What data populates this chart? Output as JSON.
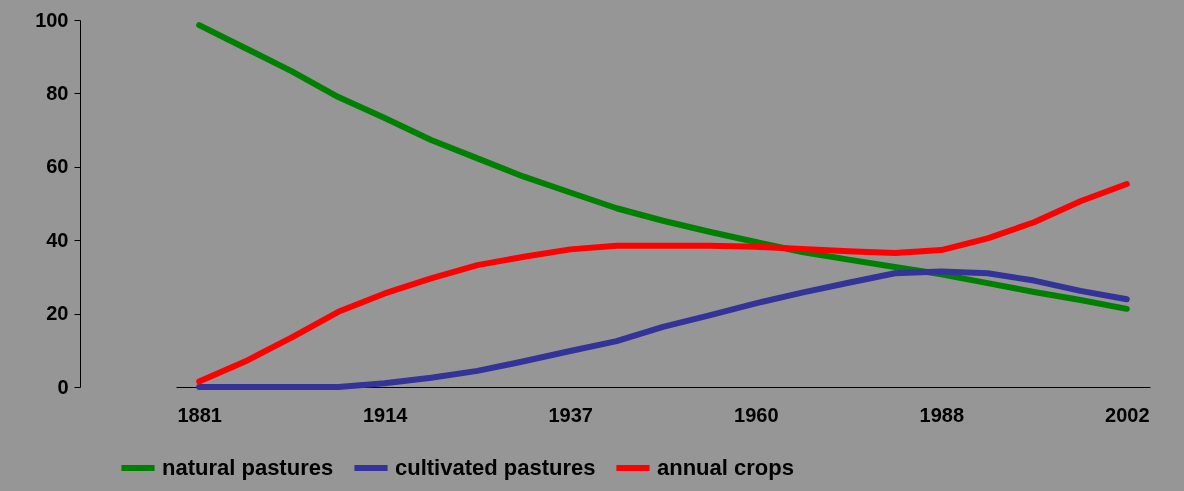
{
  "chart_data": {
    "type": "line",
    "categories": [
      "1881",
      null,
      null,
      null,
      "1914",
      null,
      null,
      null,
      "1937",
      null,
      null,
      null,
      "1960",
      null,
      null,
      null,
      "1988",
      null,
      null,
      null,
      "2002"
    ],
    "series": [
      {
        "name": "natural pastures",
        "color": "#008000",
        "values": [
          98.6,
          92.3,
          86,
          79,
          73.3,
          67.3,
          62.3,
          57.3,
          53,
          48.7,
          45.3,
          42.3,
          39.5,
          36.8,
          34.7,
          32.7,
          30.7,
          28.3,
          25.9,
          23.7,
          21.3
        ]
      },
      {
        "name": "cultivated pastures",
        "color": "#333399",
        "values": [
          0,
          0,
          0,
          0,
          1,
          2.5,
          4.4,
          7,
          9.8,
          12.5,
          16.4,
          19.5,
          22.8,
          25.7,
          28.4,
          31,
          31.5,
          31,
          29,
          26.2,
          23.9
        ]
      },
      {
        "name": "annual crops",
        "color": "#ff0000",
        "values": [
          1.5,
          7,
          13.5,
          20.5,
          25.5,
          29.6,
          33.2,
          35.5,
          37.5,
          38.5,
          38.5,
          38.5,
          38.2,
          37.6,
          37,
          36.5,
          37.3,
          40.5,
          44.9,
          50.6,
          55.3
        ]
      }
    ],
    "ylim": [
      0,
      100
    ],
    "yticks": [
      0,
      20,
      40,
      60,
      80,
      100
    ],
    "grid": false,
    "legend": "bottom",
    "marker": "none",
    "line_style": "solid"
  }
}
